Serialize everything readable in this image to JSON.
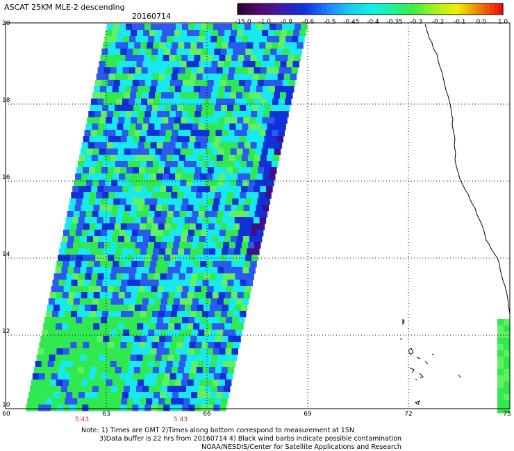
{
  "header": {
    "title": "ASCAT 25KM MLE-2 descending",
    "date": "20160714"
  },
  "colorbar": {
    "labels": [
      "-15.0",
      "-1.0",
      "-0.8",
      "-0.6",
      "-0.5",
      "-0.45",
      "-0.4",
      "-0.35",
      "-0.3",
      "-0.2",
      "-0.1",
      "0.0",
      "1.0"
    ],
    "colors": [
      "#2a0533",
      "#5a0a70",
      "#3a1bb0",
      "#1030e0",
      "#1a80ff",
      "#18c8f0",
      "#10f0e8",
      "#20f0a0",
      "#40ee40",
      "#a8f020",
      "#f0f000",
      "#f08000",
      "#f01010"
    ]
  },
  "map": {
    "lat_labels": [
      "20",
      "18",
      "16",
      "14",
      "12",
      "10"
    ],
    "lon_labels": [
      "60",
      "63",
      "66",
      "69",
      "72",
      "75"
    ],
    "time_labels": [
      "5:43",
      "5:43"
    ],
    "colors": {
      "land_edge": "#6040a0",
      "blue": "#2a5af0",
      "dark_blue": "#1030d8",
      "cyan": "#18e8f0",
      "green": "#30e850",
      "light_green": "#60f060",
      "purple": "#40108a"
    }
  },
  "footer": {
    "note_line1": "Note: 1) Times are GMT 2)Times along bottom correspond to measurement at 15N",
    "note_line2": "3)Data buffer is 22 hrs from 20160714 4) Black wind barbs indicate possible contamination",
    "credit": "NOAA/NESDIS/Center for Satellite Applications and Research"
  }
}
